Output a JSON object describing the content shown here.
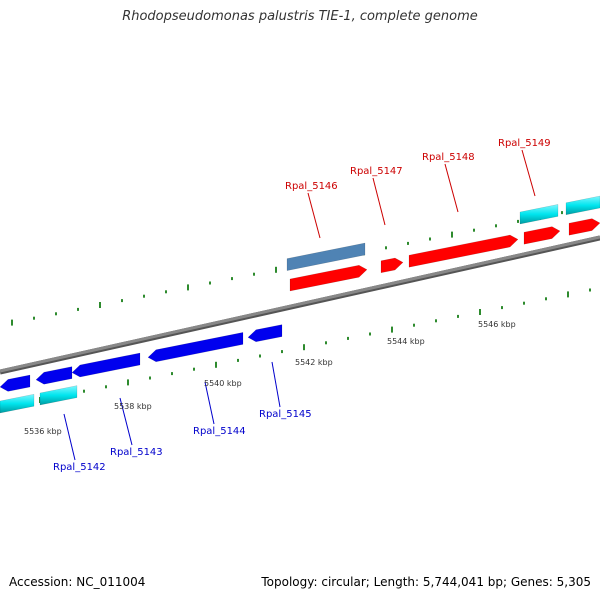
{
  "title": "Rhodopseudomonas palustris TIE-1, complete genome",
  "footer": {
    "accession": "Accession: NC_011004",
    "summary": "Topology: circular; Length: 5,744,041 bp; Genes: 5,305"
  },
  "colors": {
    "forward_gene": "#ff0000",
    "reverse_gene": "#0000ee",
    "rna_gene": "#4f83b4",
    "cds_band": "#00e5ee",
    "forward_label": "#cc0000",
    "reverse_label": "#0000cc",
    "tick": "#2e8b2e",
    "backbone": "#888888"
  },
  "scale_labels": [
    "5536 kbp",
    "5538 kbp",
    "5540 kbp",
    "5542 kbp",
    "5544 kbp",
    "5546 kbp"
  ],
  "genes_forward": [
    "Rpal_5146",
    "Rpal_5147",
    "Rpal_5148",
    "Rpal_5149"
  ],
  "genes_reverse": [
    "Rpal_5142",
    "Rpal_5143",
    "Rpal_5144",
    "Rpal_5145"
  ]
}
